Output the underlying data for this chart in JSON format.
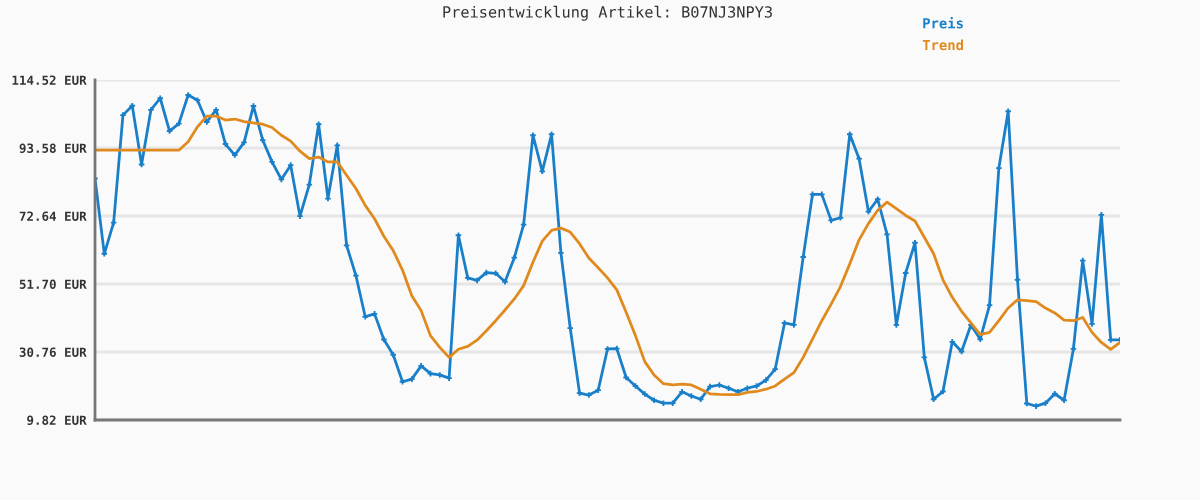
{
  "chart_data": {
    "type": "line",
    "title": "Preisentwicklung Artikel: B07NJ3NPY3",
    "categories": [
      null,
      null,
      null,
      null,
      null,
      null,
      null,
      null,
      null,
      null,
      null,
      null,
      null,
      null,
      null,
      null,
      null,
      null,
      null,
      null,
      null,
      null,
      null,
      null,
      null,
      null,
      null,
      null,
      null,
      null,
      null,
      null,
      null,
      null,
      null,
      null,
      null,
      null,
      null,
      null,
      null,
      null,
      null,
      null,
      null,
      null,
      null,
      null,
      null,
      null,
      null,
      null,
      null,
      null,
      null,
      null,
      null,
      null,
      null,
      null,
      null,
      null,
      null,
      null,
      null,
      null,
      null,
      null,
      null,
      null,
      null,
      null,
      null,
      null,
      null,
      null,
      null,
      null,
      null,
      null,
      null,
      null,
      null,
      null,
      null,
      null,
      null,
      null,
      null,
      null,
      null,
      null,
      null,
      null,
      null,
      null,
      null,
      null,
      null,
      null,
      null,
      null,
      null,
      null,
      null,
      null,
      null,
      null,
      null,
      null,
      null
    ],
    "series": [
      {
        "name": "Preis",
        "color": "#1a7fc9",
        "marker": "cross",
        "values": [
          84.2,
          61.0,
          70.6,
          103.7,
          106.6,
          88.5,
          105.3,
          108.9,
          98.8,
          101.1,
          109.9,
          108.3,
          101.6,
          105.3,
          94.8,
          91.4,
          95.3,
          106.5,
          96.0,
          89.3,
          83.9,
          88.3,
          72.6,
          82.3,
          100.9,
          78.0,
          94.4,
          63.6,
          54.3,
          41.6,
          42.5,
          34.6,
          29.9,
          21.6,
          22.4,
          26.5,
          24.1,
          23.7,
          22.7,
          66.7,
          53.6,
          52.8,
          55.2,
          55.0,
          52.4,
          59.8,
          70.0,
          97.5,
          86.4,
          97.8,
          61.3,
          38.1,
          18.1,
          17.5,
          19.0,
          31.7,
          31.8,
          22.9,
          20.3,
          17.8,
          15.9,
          15.0,
          15.0,
          18.5,
          17.2,
          16.2,
          20.1,
          20.6,
          19.6,
          18.5,
          19.6,
          20.3,
          22.1,
          25.5,
          39.7,
          39.1,
          60.0,
          79.3,
          79.3,
          71.3,
          72.1,
          97.8,
          90.3,
          74.0,
          77.8,
          67.0,
          39.1,
          55.1,
          64.4,
          29.1,
          16.2,
          18.6,
          33.9,
          30.9,
          39.1,
          34.7,
          45.2,
          87.4,
          104.9,
          53.0,
          14.9,
          14.1,
          15.0,
          17.9,
          15.9,
          31.7,
          58.9,
          39.4,
          73.0,
          34.5,
          34.5
        ]
      },
      {
        "name": "Trend",
        "color": "#e08a1e",
        "marker": "none",
        "values": [
          92.9,
          92.9,
          92.9,
          92.9,
          92.9,
          92.9,
          92.9,
          92.9,
          92.9,
          92.9,
          95.5,
          100.1,
          103.4,
          103.4,
          102.2,
          102.5,
          101.7,
          101.3,
          100.9,
          99.9,
          97.5,
          95.7,
          92.6,
          90.3,
          90.8,
          89.3,
          89.3,
          85.2,
          81.1,
          75.9,
          71.8,
          66.4,
          62.0,
          56.0,
          48.1,
          43.5,
          35.8,
          32.2,
          29.1,
          31.6,
          32.5,
          34.4,
          37.3,
          40.4,
          43.7,
          47.1,
          51.2,
          58.4,
          64.9,
          68.2,
          68.9,
          67.7,
          64.1,
          59.7,
          56.7,
          53.6,
          49.9,
          43.0,
          35.8,
          27.8,
          23.7,
          21.0,
          20.6,
          20.9,
          20.6,
          19.3,
          17.9,
          17.7,
          17.6,
          17.6,
          18.3,
          18.6,
          19.3,
          20.3,
          22.4,
          24.4,
          29.1,
          34.7,
          40.4,
          45.5,
          50.9,
          57.9,
          65.3,
          70.3,
          74.4,
          76.9,
          74.9,
          72.8,
          71.1,
          66.1,
          61.0,
          53.0,
          47.6,
          43.3,
          39.7,
          36.1,
          36.8,
          40.4,
          44.3,
          46.8,
          46.6,
          46.3,
          44.3,
          42.8,
          40.6,
          40.4,
          41.4,
          36.8,
          33.7,
          31.6,
          33.7
        ]
      }
    ],
    "ylim": [
      9.82,
      114.52
    ],
    "yticks": [
      {
        "value": 9.82,
        "label": "9.82 EUR"
      },
      {
        "value": 30.76,
        "label": "30.76 EUR"
      },
      {
        "value": 51.7,
        "label": "51.70 EUR"
      },
      {
        "value": 72.64,
        "label": "72.64 EUR"
      },
      {
        "value": 93.58,
        "label": "93.58 EUR"
      },
      {
        "value": 114.52,
        "label": "114.52 EUR"
      }
    ],
    "grid": "y",
    "legend": "top right",
    "line_style": "solid"
  }
}
